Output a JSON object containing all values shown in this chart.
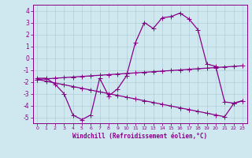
{
  "xlabel": "Windchill (Refroidissement éolien,°C)",
  "xlim": [
    -0.5,
    23.5
  ],
  "ylim": [
    -5.5,
    4.5
  ],
  "yticks": [
    -5,
    -4,
    -3,
    -2,
    -1,
    0,
    1,
    2,
    3,
    4
  ],
  "xticks": [
    0,
    1,
    2,
    3,
    4,
    5,
    6,
    7,
    8,
    9,
    10,
    11,
    12,
    13,
    14,
    15,
    16,
    17,
    18,
    19,
    20,
    21,
    22,
    23
  ],
  "bg_color": "#cfe8ef",
  "line_color": "#880088",
  "grid_color": "#b0cdd8",
  "line1_x": [
    0,
    1,
    2,
    3,
    4,
    5,
    6,
    7,
    8,
    9,
    10,
    11,
    12,
    13,
    14,
    15,
    16,
    17,
    18,
    19,
    20,
    21,
    22,
    23
  ],
  "line1_y": [
    -1.7,
    -1.7,
    -2.2,
    -3.0,
    -4.8,
    -5.2,
    -4.8,
    -1.7,
    -3.2,
    -2.6,
    -1.5,
    1.3,
    3.0,
    2.5,
    3.4,
    3.5,
    3.8,
    3.3,
    2.4,
    -0.5,
    -0.7,
    -3.7,
    -3.8,
    -3.6
  ],
  "line2_x": [
    0,
    1,
    2,
    3,
    4,
    5,
    6,
    7,
    8,
    9,
    10,
    11,
    12,
    13,
    14,
    15,
    16,
    17,
    18,
    19,
    20,
    21,
    22,
    23
  ],
  "line2_y": [
    -1.8,
    -1.75,
    -1.7,
    -1.65,
    -1.6,
    -1.55,
    -1.5,
    -1.45,
    -1.4,
    -1.35,
    -1.3,
    -1.25,
    -1.2,
    -1.15,
    -1.1,
    -1.05,
    -1.0,
    -0.95,
    -0.9,
    -0.85,
    -0.8,
    -0.75,
    -0.7,
    -0.65
  ],
  "line3_x": [
    0,
    1,
    2,
    3,
    4,
    5,
    6,
    7,
    8,
    9,
    10,
    11,
    12,
    13,
    14,
    15,
    16,
    17,
    18,
    19,
    20,
    21,
    22,
    23
  ],
  "line3_y": [
    -1.8,
    -1.95,
    -2.1,
    -2.25,
    -2.4,
    -2.55,
    -2.7,
    -2.85,
    -3.0,
    -3.15,
    -3.3,
    -3.45,
    -3.6,
    -3.75,
    -3.9,
    -4.05,
    -4.2,
    -4.35,
    -4.5,
    -4.65,
    -4.8,
    -4.95,
    -3.85,
    -3.6
  ]
}
